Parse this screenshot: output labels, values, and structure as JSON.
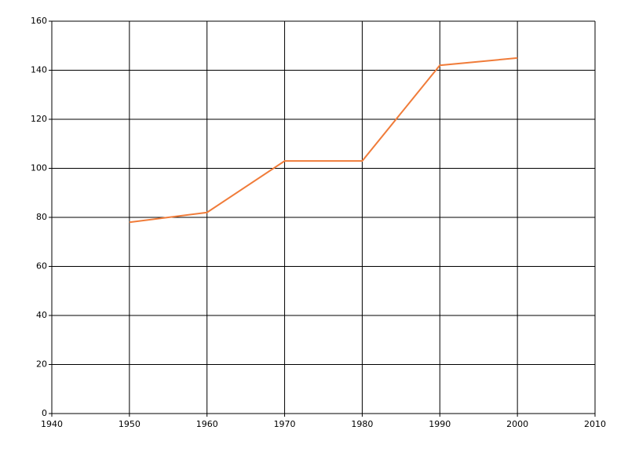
{
  "chart_data": {
    "type": "line",
    "x": [
      1950,
      1960,
      1970,
      1980,
      1990,
      2000
    ],
    "series": [
      {
        "color": "#f07c3a",
        "values": [
          78,
          82,
          103,
          103,
          142,
          145
        ]
      }
    ],
    "xlim": [
      1940,
      2010
    ],
    "xticks": [
      1940,
      1950,
      1960,
      1970,
      1980,
      1990,
      2000,
      2010
    ],
    "ylim": [
      0,
      160
    ],
    "yticks": [
      0,
      20,
      40,
      60,
      80,
      100,
      120,
      140,
      160
    ],
    "grid": true
  }
}
